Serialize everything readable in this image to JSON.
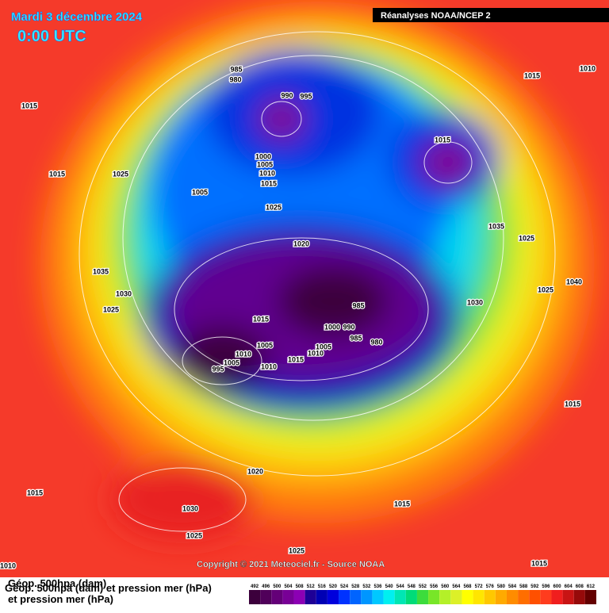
{
  "header": {
    "date": "Mardi 3 décembre 2024",
    "time": "0:00 UTC",
    "source": "Réanalyses NOAA/NCEP 2"
  },
  "isobars": [
    985,
    980,
    990,
    995,
    1015,
    1010,
    1015,
    1015,
    1025,
    1005,
    1000,
    1005,
    1010,
    1015,
    1025,
    1015,
    1020,
    1025,
    1035,
    1035,
    1030,
    1025,
    1015,
    985,
    1005,
    1010,
    1000,
    990,
    985,
    980,
    1005,
    1010,
    1015,
    1010,
    995,
    1005,
    1030,
    1040,
    1025,
    1015,
    1020,
    1015,
    1030,
    1025,
    1015,
    1025,
    1015,
    1010
  ],
  "footer": {
    "copyright": "Copyright © 2021 Meteociel.fr - Source NOAA",
    "caption_1": "Géop. 500hpa (dam)",
    "caption_2": "Géop. 500hpa (dam) et pression mer (hPa)",
    "caption_3": "et pression mer (hPa)"
  },
  "legend": {
    "ticks": [
      492,
      496,
      500,
      504,
      508,
      512,
      516,
      520,
      524,
      528,
      532,
      536,
      540,
      544,
      548,
      552,
      556,
      560,
      564,
      568,
      572,
      576,
      580,
      584,
      588,
      592,
      596,
      600,
      604,
      608,
      612
    ],
    "colors": [
      "#3c003c",
      "#50005a",
      "#640078",
      "#780096",
      "#8c00b4",
      "#1e0096",
      "#0000b4",
      "#0000dc",
      "#0032ff",
      "#0064ff",
      "#0096ff",
      "#00c8ff",
      "#00f0f0",
      "#00e6b4",
      "#00dc78",
      "#3cdc3c",
      "#78e628",
      "#b4f028",
      "#dcf028",
      "#ffff00",
      "#ffe600",
      "#ffc800",
      "#ffaa00",
      "#ff8c00",
      "#ff6e00",
      "#ff5000",
      "#ff3c1e",
      "#f01e1e",
      "#c81414",
      "#960a0a",
      "#640000"
    ]
  }
}
